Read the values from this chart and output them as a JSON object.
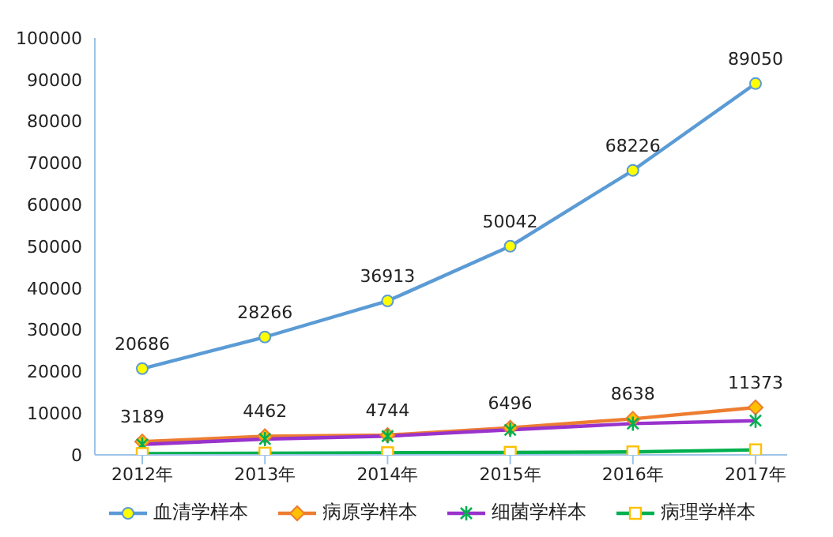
{
  "chart_data": {
    "type": "line",
    "categories": [
      "2012年",
      "2013年",
      "2014年",
      "2015年",
      "2016年",
      "2017年"
    ],
    "series": [
      {
        "name": "血清学样本",
        "color": "#5b9bd5",
        "marker": "circle",
        "values": [
          20686,
          28266,
          36913,
          50042,
          68226,
          89050
        ],
        "value_labels": [
          "20686",
          "28266",
          "36913",
          "50042",
          "68226",
          "89050"
        ]
      },
      {
        "name": "病原学样本",
        "color": "#ed7d31",
        "marker": "diamond",
        "values": [
          3189,
          4462,
          4744,
          6496,
          8638,
          11373
        ],
        "value_labels": [
          "3189",
          "4462",
          "4744",
          "6496",
          "8638",
          "11373"
        ]
      },
      {
        "name": "细菌学样本",
        "color": "#9933cc",
        "marker": "cross",
        "values": [
          2500,
          3800,
          4500,
          6000,
          7500,
          8200
        ]
      },
      {
        "name": "病理学样本",
        "color": "#00b050",
        "marker": "square",
        "values": [
          300,
          400,
          500,
          600,
          700,
          1200
        ]
      }
    ],
    "ylim": [
      0,
      100000
    ],
    "yticks": [
      0,
      10000,
      20000,
      30000,
      40000,
      50000,
      60000,
      70000,
      80000,
      90000,
      100000
    ],
    "grid": false,
    "legend": "bottom",
    "line_style": "solid"
  }
}
